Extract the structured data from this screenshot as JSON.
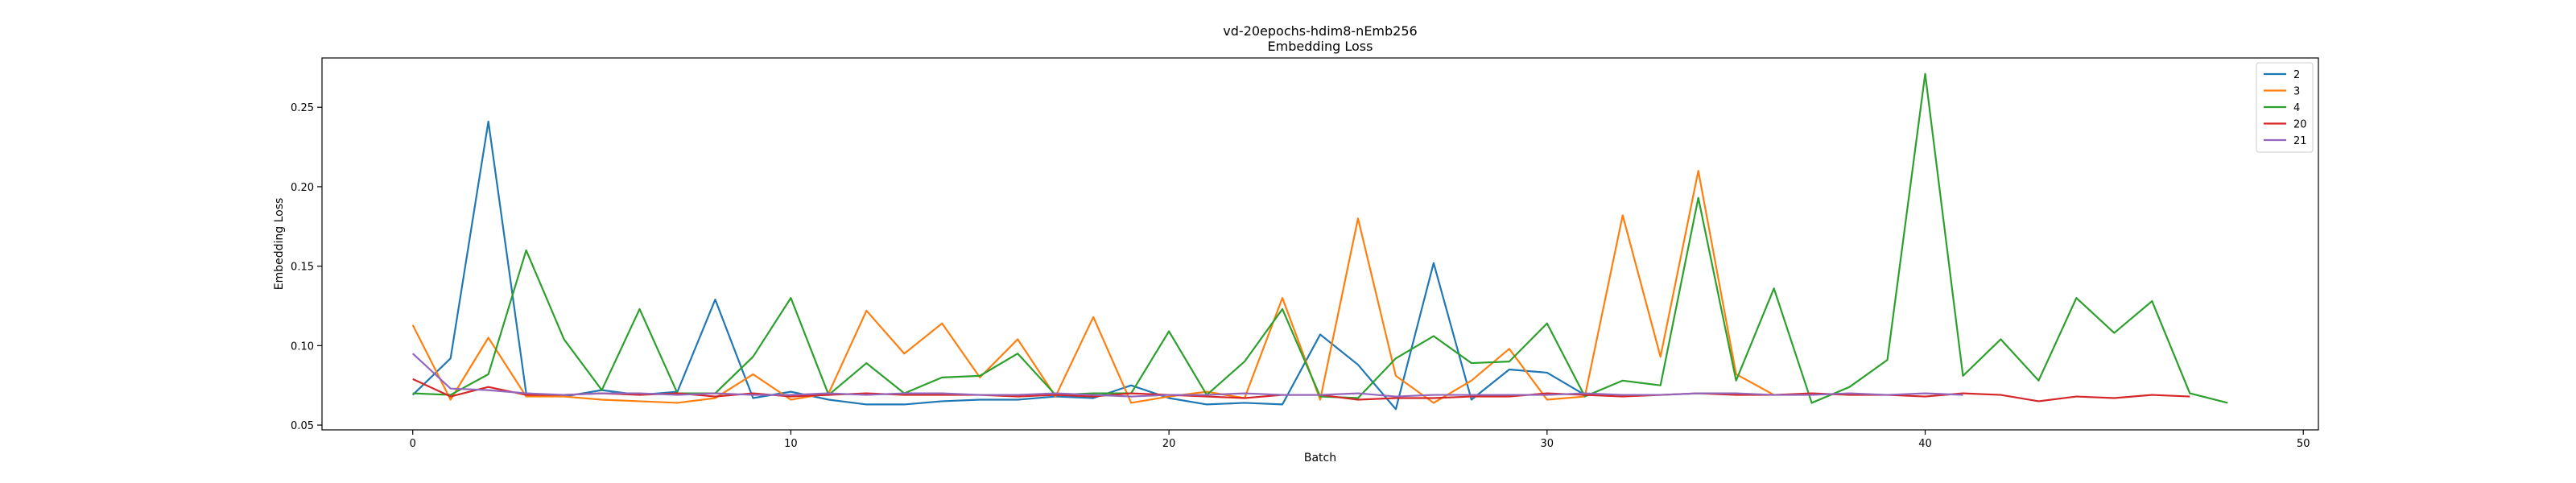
{
  "chart_data": {
    "type": "line",
    "title": "vd-20epochs-hdim8-nEmb256",
    "subtitle": "Embedding Loss",
    "xlabel": "Batch",
    "ylabel": "Embedding Loss",
    "xlim": [
      -2.4,
      50.4
    ],
    "ylim": [
      0.047,
      0.281
    ],
    "xticks": [
      0,
      10,
      20,
      30,
      40,
      50
    ],
    "yticks": [
      0.05,
      0.1,
      0.15,
      0.2,
      0.25
    ],
    "ytick_labels": [
      "0.05",
      "0.10",
      "0.15",
      "0.20",
      "0.25"
    ],
    "grid": false,
    "legend_position": "top-right",
    "series": [
      {
        "name": "2",
        "color": "#1f77b4",
        "x": [
          0,
          1,
          2,
          3,
          4,
          5,
          6,
          7,
          8,
          9,
          10,
          11,
          12,
          13,
          14,
          15,
          16,
          17,
          18,
          19,
          20,
          21,
          22,
          23,
          24,
          25,
          26,
          27,
          28,
          29,
          30,
          31
        ],
        "values": [
          0.069,
          0.092,
          0.241,
          0.07,
          0.068,
          0.072,
          0.069,
          0.071,
          0.129,
          0.067,
          0.071,
          0.066,
          0.063,
          0.063,
          0.065,
          0.066,
          0.066,
          0.068,
          0.067,
          0.075,
          0.067,
          0.063,
          0.064,
          0.063,
          0.107,
          0.088,
          0.06,
          0.152,
          0.066,
          0.085,
          0.083,
          0.069
        ]
      },
      {
        "name": "3",
        "color": "#ff7f0e",
        "x": [
          0,
          1,
          2,
          3,
          4,
          5,
          6,
          7,
          8,
          9,
          10,
          11,
          12,
          13,
          14,
          15,
          16,
          17,
          18,
          19,
          20,
          21,
          22,
          23,
          24,
          25,
          26,
          27,
          28,
          29,
          30,
          31,
          32,
          33,
          34,
          35,
          36
        ],
        "values": [
          0.113,
          0.066,
          0.105,
          0.068,
          0.068,
          0.066,
          0.065,
          0.064,
          0.067,
          0.082,
          0.066,
          0.07,
          0.122,
          0.095,
          0.114,
          0.08,
          0.104,
          0.068,
          0.118,
          0.064,
          0.068,
          0.071,
          0.067,
          0.13,
          0.066,
          0.18,
          0.081,
          0.064,
          0.078,
          0.098,
          0.066,
          0.068,
          0.182,
          0.093,
          0.21,
          0.082,
          0.069
        ]
      },
      {
        "name": "4",
        "color": "#2ca02c",
        "x": [
          0,
          1,
          2,
          3,
          4,
          5,
          6,
          7,
          8,
          9,
          10,
          11,
          12,
          13,
          14,
          15,
          16,
          17,
          18,
          19,
          20,
          21,
          22,
          23,
          24,
          25,
          26,
          27,
          28,
          29,
          30,
          31,
          32,
          33,
          34,
          35,
          36,
          37,
          38,
          39,
          40,
          41,
          42,
          43,
          44,
          45,
          46,
          47,
          48
        ],
        "values": [
          0.07,
          0.069,
          0.082,
          0.16,
          0.104,
          0.072,
          0.123,
          0.07,
          0.07,
          0.093,
          0.13,
          0.069,
          0.089,
          0.07,
          0.08,
          0.081,
          0.095,
          0.069,
          0.07,
          0.07,
          0.109,
          0.069,
          0.09,
          0.123,
          0.068,
          0.067,
          0.092,
          0.106,
          0.089,
          0.09,
          0.114,
          0.068,
          0.078,
          0.075,
          0.193,
          0.078,
          0.136,
          0.064,
          0.074,
          0.091,
          0.271,
          0.081,
          0.104,
          0.078,
          0.13,
          0.108,
          0.128,
          0.07,
          0.064
        ]
      },
      {
        "name": "20",
        "color": "#d62728",
        "x": [
          0,
          1,
          2,
          3,
          4,
          5,
          6,
          7,
          8,
          9,
          10,
          11,
          12,
          13,
          14,
          15,
          16,
          17,
          18,
          19,
          20,
          21,
          22,
          23,
          24,
          25,
          26,
          27,
          28,
          29,
          30,
          31,
          32,
          33,
          34,
          35,
          36,
          37,
          38,
          39,
          40,
          41,
          42,
          43,
          44,
          45,
          46,
          47
        ],
        "values": [
          0.079,
          0.068,
          0.074,
          0.069,
          0.069,
          0.07,
          0.069,
          0.07,
          0.068,
          0.07,
          0.068,
          0.069,
          0.07,
          0.069,
          0.069,
          0.069,
          0.068,
          0.069,
          0.068,
          0.07,
          0.069,
          0.068,
          0.067,
          0.069,
          0.069,
          0.066,
          0.067,
          0.067,
          0.068,
          0.068,
          0.07,
          0.069,
          0.068,
          0.069,
          0.07,
          0.069,
          0.069,
          0.07,
          0.069,
          0.069,
          0.068,
          0.07,
          0.069,
          0.065,
          0.068,
          0.067,
          0.069,
          0.068
        ]
      },
      {
        "name": "21",
        "color": "#9467bd",
        "x": [
          0,
          1,
          2,
          3,
          4,
          5,
          6,
          7,
          8,
          9,
          10,
          11,
          12,
          13,
          14,
          15,
          16,
          17,
          18,
          19,
          20,
          21,
          22,
          23,
          24,
          25,
          26,
          27,
          28,
          29,
          30,
          31,
          32,
          33,
          34,
          35,
          36,
          37,
          38,
          39,
          40,
          41
        ],
        "values": [
          0.095,
          0.073,
          0.072,
          0.07,
          0.069,
          0.07,
          0.07,
          0.069,
          0.07,
          0.069,
          0.069,
          0.07,
          0.069,
          0.07,
          0.07,
          0.069,
          0.069,
          0.07,
          0.069,
          0.068,
          0.069,
          0.069,
          0.07,
          0.069,
          0.069,
          0.07,
          0.068,
          0.069,
          0.069,
          0.069,
          0.069,
          0.07,
          0.069,
          0.069,
          0.07,
          0.07,
          0.069,
          0.069,
          0.07,
          0.069,
          0.07,
          0.069
        ]
      }
    ]
  }
}
